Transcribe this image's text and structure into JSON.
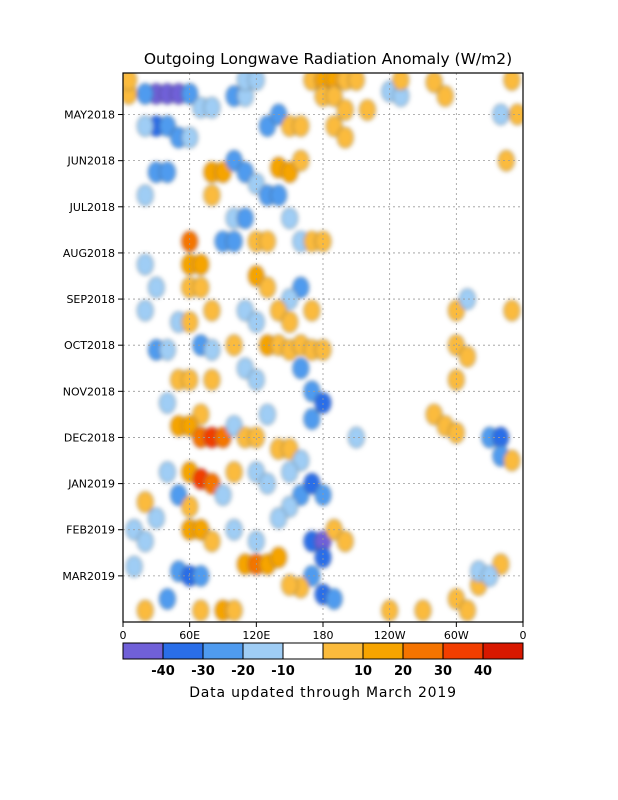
{
  "chart_data": {
    "type": "heatmap",
    "title": "Outgoing Longwave Radiation Anomaly (W/m2)",
    "footer": "Data updated through March 2019",
    "x_ticks": [
      {
        "lon": 0,
        "label": "0"
      },
      {
        "lon": 60,
        "label": "60E"
      },
      {
        "lon": 120,
        "label": "120E"
      },
      {
        "lon": 180,
        "label": "180"
      },
      {
        "lon": 240,
        "label": "120W"
      },
      {
        "lon": 300,
        "label": "60W"
      },
      {
        "lon": 360,
        "label": "0"
      }
    ],
    "xlim": [
      0,
      360
    ],
    "y_ticks": [
      {
        "month": 1,
        "label": "MAY2018"
      },
      {
        "month": 2,
        "label": "JUN2018"
      },
      {
        "month": 3,
        "label": "JUL2018"
      },
      {
        "month": 4,
        "label": "AUG2018"
      },
      {
        "month": 5,
        "label": "SEP2018"
      },
      {
        "month": 6,
        "label": "OCT2018"
      },
      {
        "month": 7,
        "label": "NOV2018"
      },
      {
        "month": 8,
        "label": "DEC2018"
      },
      {
        "month": 9,
        "label": "JAN2019"
      },
      {
        "month": 10,
        "label": "FEB2019"
      },
      {
        "month": 11,
        "label": "MAR2019"
      }
    ],
    "ylim": [
      0.1,
      12.0
    ],
    "grid": true,
    "colorbar": {
      "colors": [
        "#7060d8",
        "#2a6ee8",
        "#4f9bef",
        "#9fcdf5",
        "#ffffff",
        "#fbbb3c",
        "#f6a400",
        "#f57400",
        "#f23e00",
        "#d81800"
      ],
      "tick_labels": [
        "-40",
        "-30",
        "-20",
        "-10",
        "10",
        "20",
        "30",
        "40"
      ]
    },
    "anomaly_cells": [
      {
        "lon": 30,
        "m": 0.55,
        "v": -45
      },
      {
        "lon": 40,
        "m": 0.55,
        "v": -45
      },
      {
        "lon": 50,
        "m": 0.55,
        "v": -40
      },
      {
        "lon": 20,
        "m": 0.55,
        "v": -20
      },
      {
        "lon": 60,
        "m": 0.55,
        "v": -25
      },
      {
        "lon": 5,
        "m": 0.55,
        "v": 18
      },
      {
        "lon": 5,
        "m": 0.25,
        "v": 15
      },
      {
        "lon": 30,
        "m": 1.25,
        "v": -30
      },
      {
        "lon": 40,
        "m": 1.25,
        "v": -25
      },
      {
        "lon": 20,
        "m": 1.25,
        "v": -15
      },
      {
        "lon": 50,
        "m": 1.5,
        "v": -20
      },
      {
        "lon": 60,
        "m": 1.5,
        "v": -18
      },
      {
        "lon": 70,
        "m": 0.85,
        "v": -15
      },
      {
        "lon": 80,
        "m": 0.85,
        "v": -12
      },
      {
        "lon": 100,
        "m": 0.6,
        "v": -20
      },
      {
        "lon": 110,
        "m": 0.6,
        "v": -15
      },
      {
        "lon": 130,
        "m": 1.25,
        "v": -25
      },
      {
        "lon": 140,
        "m": 1.0,
        "v": -20
      },
      {
        "lon": 150,
        "m": 1.25,
        "v": 15
      },
      {
        "lon": 160,
        "m": 1.25,
        "v": 15
      },
      {
        "lon": 170,
        "m": 0.25,
        "v": 18
      },
      {
        "lon": 180,
        "m": 0.25,
        "v": 20
      },
      {
        "lon": 190,
        "m": 0.25,
        "v": 20
      },
      {
        "lon": 200,
        "m": 0.25,
        "v": 18
      },
      {
        "lon": 210,
        "m": 0.25,
        "v": 15
      },
      {
        "lon": 180,
        "m": 0.6,
        "v": 18
      },
      {
        "lon": 190,
        "m": 0.6,
        "v": 15
      },
      {
        "lon": 200,
        "m": 0.9,
        "v": 15
      },
      {
        "lon": 220,
        "m": 0.9,
        "v": 12
      },
      {
        "lon": 190,
        "m": 1.25,
        "v": 12
      },
      {
        "lon": 200,
        "m": 1.5,
        "v": 12
      },
      {
        "lon": 110,
        "m": 0.25,
        "v": -18
      },
      {
        "lon": 120,
        "m": 0.25,
        "v": -15
      },
      {
        "lon": 240,
        "m": 0.5,
        "v": -12
      },
      {
        "lon": 250,
        "m": 0.6,
        "v": -10
      },
      {
        "lon": 250,
        "m": 0.25,
        "v": 15
      },
      {
        "lon": 280,
        "m": 0.3,
        "v": 12
      },
      {
        "lon": 290,
        "m": 0.6,
        "v": 15
      },
      {
        "lon": 350,
        "m": 0.25,
        "v": 12
      },
      {
        "lon": 355,
        "m": 1.0,
        "v": 15
      },
      {
        "lon": 345,
        "m": 2.0,
        "v": 18
      },
      {
        "lon": 340,
        "m": 1.0,
        "v": -12
      },
      {
        "lon": 30,
        "m": 2.25,
        "v": -25
      },
      {
        "lon": 40,
        "m": 2.25,
        "v": -20
      },
      {
        "lon": 20,
        "m": 2.75,
        "v": -15
      },
      {
        "lon": 80,
        "m": 2.25,
        "v": 25
      },
      {
        "lon": 90,
        "m": 2.25,
        "v": 20
      },
      {
        "lon": 80,
        "m": 2.75,
        "v": 15
      },
      {
        "lon": 100,
        "m": 2.0,
        "v": -25
      },
      {
        "lon": 110,
        "m": 2.25,
        "v": -20
      },
      {
        "lon": 120,
        "m": 2.5,
        "v": -15
      },
      {
        "lon": 130,
        "m": 2.75,
        "v": -25
      },
      {
        "lon": 140,
        "m": 2.75,
        "v": -20
      },
      {
        "lon": 140,
        "m": 2.15,
        "v": 25
      },
      {
        "lon": 150,
        "m": 2.25,
        "v": 20
      },
      {
        "lon": 160,
        "m": 2.0,
        "v": 15
      },
      {
        "lon": 100,
        "m": 3.25,
        "v": -15
      },
      {
        "lon": 110,
        "m": 3.25,
        "v": -20
      },
      {
        "lon": 90,
        "m": 3.75,
        "v": -25
      },
      {
        "lon": 100,
        "m": 3.75,
        "v": -20
      },
      {
        "lon": 60,
        "m": 3.75,
        "v": 30
      },
      {
        "lon": 60,
        "m": 4.25,
        "v": 25
      },
      {
        "lon": 70,
        "m": 4.25,
        "v": 20
      },
      {
        "lon": 60,
        "m": 4.75,
        "v": 18
      },
      {
        "lon": 70,
        "m": 4.75,
        "v": 15
      },
      {
        "lon": 120,
        "m": 3.75,
        "v": 15
      },
      {
        "lon": 130,
        "m": 3.75,
        "v": 12
      },
      {
        "lon": 120,
        "m": 4.5,
        "v": 20
      },
      {
        "lon": 130,
        "m": 4.75,
        "v": 15
      },
      {
        "lon": 150,
        "m": 3.25,
        "v": -15
      },
      {
        "lon": 160,
        "m": 3.75,
        "v": -15
      },
      {
        "lon": 170,
        "m": 3.75,
        "v": 15
      },
      {
        "lon": 180,
        "m": 3.75,
        "v": 12
      },
      {
        "lon": 160,
        "m": 4.75,
        "v": -20
      },
      {
        "lon": 150,
        "m": 5.0,
        "v": -18
      },
      {
        "lon": 20,
        "m": 4.25,
        "v": -12
      },
      {
        "lon": 30,
        "m": 4.75,
        "v": -15
      },
      {
        "lon": 20,
        "m": 5.25,
        "v": -10
      },
      {
        "lon": 50,
        "m": 5.5,
        "v": -15
      },
      {
        "lon": 60,
        "m": 5.5,
        "v": 15
      },
      {
        "lon": 80,
        "m": 5.25,
        "v": 15
      },
      {
        "lon": 110,
        "m": 5.25,
        "v": -12
      },
      {
        "lon": 120,
        "m": 5.5,
        "v": -15
      },
      {
        "lon": 140,
        "m": 5.25,
        "v": 15
      },
      {
        "lon": 150,
        "m": 5.5,
        "v": 15
      },
      {
        "lon": 170,
        "m": 5.25,
        "v": 12
      },
      {
        "lon": 300,
        "m": 5.25,
        "v": 12
      },
      {
        "lon": 310,
        "m": 5.0,
        "v": -12
      },
      {
        "lon": 350,
        "m": 5.25,
        "v": 12
      },
      {
        "lon": 30,
        "m": 6.1,
        "v": -20
      },
      {
        "lon": 40,
        "m": 6.1,
        "v": -15
      },
      {
        "lon": 70,
        "m": 6.0,
        "v": -20
      },
      {
        "lon": 80,
        "m": 6.1,
        "v": -18
      },
      {
        "lon": 100,
        "m": 6.0,
        "v": 15
      },
      {
        "lon": 130,
        "m": 6.0,
        "v": 20
      },
      {
        "lon": 140,
        "m": 6.0,
        "v": 18
      },
      {
        "lon": 150,
        "m": 6.1,
        "v": 15
      },
      {
        "lon": 160,
        "m": 6.0,
        "v": 15
      },
      {
        "lon": 170,
        "m": 6.1,
        "v": 18
      },
      {
        "lon": 180,
        "m": 6.1,
        "v": 15
      },
      {
        "lon": 50,
        "m": 6.75,
        "v": 15
      },
      {
        "lon": 60,
        "m": 6.75,
        "v": 18
      },
      {
        "lon": 80,
        "m": 6.75,
        "v": 15
      },
      {
        "lon": 110,
        "m": 6.5,
        "v": -15
      },
      {
        "lon": 120,
        "m": 6.75,
        "v": -15
      },
      {
        "lon": 160,
        "m": 6.5,
        "v": -20
      },
      {
        "lon": 170,
        "m": 7.0,
        "v": -25
      },
      {
        "lon": 180,
        "m": 7.25,
        "v": -30
      },
      {
        "lon": 170,
        "m": 7.6,
        "v": -20
      },
      {
        "lon": 300,
        "m": 6.0,
        "v": 15
      },
      {
        "lon": 310,
        "m": 6.25,
        "v": 18
      },
      {
        "lon": 300,
        "m": 6.75,
        "v": 12
      },
      {
        "lon": 40,
        "m": 7.25,
        "v": -12
      },
      {
        "lon": 70,
        "m": 7.5,
        "v": 15
      },
      {
        "lon": 50,
        "m": 7.75,
        "v": 20
      },
      {
        "lon": 60,
        "m": 7.75,
        "v": 25
      },
      {
        "lon": 70,
        "m": 8.0,
        "v": 30
      },
      {
        "lon": 80,
        "m": 8.0,
        "v": 40
      },
      {
        "lon": 90,
        "m": 8.0,
        "v": 30
      },
      {
        "lon": 100,
        "m": 7.75,
        "v": -15
      },
      {
        "lon": 110,
        "m": 8.0,
        "v": 15
      },
      {
        "lon": 120,
        "m": 8.0,
        "v": 18
      },
      {
        "lon": 140,
        "m": 8.25,
        "v": 18
      },
      {
        "lon": 150,
        "m": 8.25,
        "v": 15
      },
      {
        "lon": 130,
        "m": 7.5,
        "v": -15
      },
      {
        "lon": 160,
        "m": 8.5,
        "v": -15
      },
      {
        "lon": 210,
        "m": 8.0,
        "v": -10
      },
      {
        "lon": 280,
        "m": 7.5,
        "v": 12
      },
      {
        "lon": 290,
        "m": 7.75,
        "v": 18
      },
      {
        "lon": 300,
        "m": 7.9,
        "v": 15
      },
      {
        "lon": 330,
        "m": 8.0,
        "v": -25
      },
      {
        "lon": 340,
        "m": 8.0,
        "v": -35
      },
      {
        "lon": 340,
        "m": 8.4,
        "v": -25
      },
      {
        "lon": 350,
        "m": 8.5,
        "v": 12
      },
      {
        "lon": 40,
        "m": 8.75,
        "v": -15
      },
      {
        "lon": 60,
        "m": 8.75,
        "v": 25
      },
      {
        "lon": 70,
        "m": 8.9,
        "v": 40
      },
      {
        "lon": 80,
        "m": 9.0,
        "v": 30
      },
      {
        "lon": 50,
        "m": 9.25,
        "v": -20
      },
      {
        "lon": 90,
        "m": 9.25,
        "v": -15
      },
      {
        "lon": 100,
        "m": 8.75,
        "v": 15
      },
      {
        "lon": 120,
        "m": 8.75,
        "v": -15
      },
      {
        "lon": 130,
        "m": 9.0,
        "v": -18
      },
      {
        "lon": 150,
        "m": 8.75,
        "v": -15
      },
      {
        "lon": 160,
        "m": 9.25,
        "v": -20
      },
      {
        "lon": 170,
        "m": 9.0,
        "v": -35
      },
      {
        "lon": 180,
        "m": 9.25,
        "v": -25
      },
      {
        "lon": 150,
        "m": 9.5,
        "v": -15
      },
      {
        "lon": 20,
        "m": 9.4,
        "v": 12
      },
      {
        "lon": 30,
        "m": 9.75,
        "v": -15
      },
      {
        "lon": 60,
        "m": 9.5,
        "v": 15
      },
      {
        "lon": 10,
        "m": 10.0,
        "v": -15
      },
      {
        "lon": 20,
        "m": 10.25,
        "v": -18
      },
      {
        "lon": 60,
        "m": 10.0,
        "v": 20
      },
      {
        "lon": 70,
        "m": 10.0,
        "v": 25
      },
      {
        "lon": 80,
        "m": 10.25,
        "v": 15
      },
      {
        "lon": 100,
        "m": 10.0,
        "v": -15
      },
      {
        "lon": 120,
        "m": 10.25,
        "v": -12
      },
      {
        "lon": 140,
        "m": 9.75,
        "v": -15
      },
      {
        "lon": 170,
        "m": 10.25,
        "v": -35
      },
      {
        "lon": 180,
        "m": 10.25,
        "v": -40
      },
      {
        "lon": 180,
        "m": 10.6,
        "v": -30
      },
      {
        "lon": 190,
        "m": 10.0,
        "v": 18
      },
      {
        "lon": 200,
        "m": 10.25,
        "v": 15
      },
      {
        "lon": 170,
        "m": 11.0,
        "v": -25
      },
      {
        "lon": 180,
        "m": 11.4,
        "v": -30
      },
      {
        "lon": 190,
        "m": 11.5,
        "v": -20
      },
      {
        "lon": 160,
        "m": 11.25,
        "v": 15
      },
      {
        "lon": 50,
        "m": 10.9,
        "v": -20
      },
      {
        "lon": 60,
        "m": 11.0,
        "v": -30
      },
      {
        "lon": 70,
        "m": 11.0,
        "v": -25
      },
      {
        "lon": 110,
        "m": 10.75,
        "v": 25
      },
      {
        "lon": 120,
        "m": 10.75,
        "v": 30
      },
      {
        "lon": 130,
        "m": 10.75,
        "v": 25
      },
      {
        "lon": 140,
        "m": 10.6,
        "v": 20
      },
      {
        "lon": 150,
        "m": 11.2,
        "v": 10
      },
      {
        "lon": 10,
        "m": 10.8,
        "v": -18
      },
      {
        "lon": 20,
        "m": 11.75,
        "v": 15
      },
      {
        "lon": 40,
        "m": 11.5,
        "v": -20
      },
      {
        "lon": 70,
        "m": 11.75,
        "v": 18
      },
      {
        "lon": 90,
        "m": 11.75,
        "v": 20
      },
      {
        "lon": 100,
        "m": 11.75,
        "v": 15
      },
      {
        "lon": 240,
        "m": 11.75,
        "v": 12
      },
      {
        "lon": 270,
        "m": 11.75,
        "v": 12
      },
      {
        "lon": 300,
        "m": 11.5,
        "v": 15
      },
      {
        "lon": 310,
        "m": 11.75,
        "v": 18
      },
      {
        "lon": 320,
        "m": 11.2,
        "v": 15
      },
      {
        "lon": 340,
        "m": 10.75,
        "v": 15
      },
      {
        "lon": 320,
        "m": 10.9,
        "v": -12
      },
      {
        "lon": 330,
        "m": 11.0,
        "v": -18
      }
    ]
  }
}
